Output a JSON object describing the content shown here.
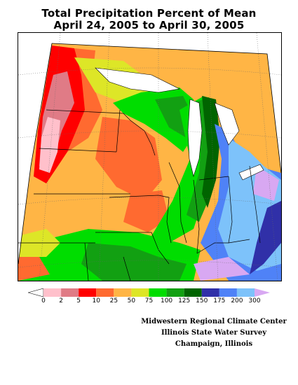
{
  "map": {
    "title_line1": "Total Precipitation Percent of Mean",
    "title_line2": "April 24, 2005 to April 30, 2005"
  },
  "legend": {
    "bins": [
      {
        "label": "0",
        "color": "#ffffff"
      },
      {
        "label": "2",
        "color": "#ffc0cb"
      },
      {
        "label": "5",
        "color": "#e07b86"
      },
      {
        "label": "10",
        "color": "#ff0000"
      },
      {
        "label": "25",
        "color": "#ff6a30"
      },
      {
        "label": "50",
        "color": "#ffb545"
      },
      {
        "label": "75",
        "color": "#dde627"
      },
      {
        "label": "100",
        "color": "#00dd00"
      },
      {
        "label": "125",
        "color": "#12a012"
      },
      {
        "label": "150",
        "color": "#006400"
      },
      {
        "label": "175",
        "color": "#3030a8"
      },
      {
        "label": "200",
        "color": "#4f82f7"
      },
      {
        "label": "300",
        "color": "#7dc2fa"
      }
    ],
    "over_color": "#d8a8f2"
  },
  "credits": {
    "line1": "Midwestern Regional Climate Center",
    "line2": "Illinois State Water Survey",
    "line3": "Champaign, Illinois"
  }
}
